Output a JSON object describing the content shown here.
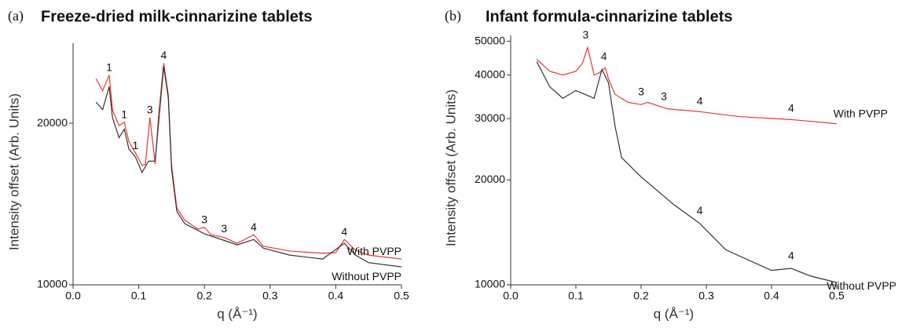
{
  "chart_data": [
    {
      "type": "line",
      "panel_label": "(a)",
      "title": "Freeze-dried milk-cinnarizine tablets",
      "x_label": "q (Å⁻¹)",
      "y_label": "Intensity offset (Arb. Units)",
      "xlim": [
        0,
        0.5
      ],
      "xticks": [
        {
          "value": 0,
          "label": "0.0"
        },
        0.1,
        0.2,
        0.3,
        0.4,
        0.5
      ],
      "ylim": [
        10000,
        28200
      ],
      "yticks": [
        10000,
        20000
      ],
      "y_log": true,
      "series": [
        {
          "name": "With PVPP",
          "color": "#e8382f",
          "x": [
            0.035,
            0.045,
            0.055,
            0.06,
            0.07,
            0.078,
            0.085,
            0.095,
            0.105,
            0.11,
            0.117,
            0.125,
            0.13,
            0.138,
            0.145,
            0.15,
            0.158,
            0.17,
            0.19,
            0.2,
            0.21,
            0.23,
            0.25,
            0.275,
            0.29,
            0.33,
            0.38,
            0.4,
            0.413,
            0.43,
            0.45,
            0.5
          ],
          "values": [
            24200,
            23000,
            24600,
            21200,
            19800,
            20100,
            18500,
            17600,
            16700,
            16750,
            20500,
            16800,
            20500,
            25900,
            22600,
            16700,
            13900,
            13200,
            12700,
            12800,
            12400,
            12250,
            11950,
            12400,
            11800,
            11560,
            11450,
            11480,
            12150,
            11600,
            11360,
            11170
          ]
        },
        {
          "name": "Without PVPP",
          "color": "#333333",
          "x": [
            0.035,
            0.045,
            0.055,
            0.06,
            0.07,
            0.078,
            0.085,
            0.095,
            0.105,
            0.115,
            0.125,
            0.132,
            0.138,
            0.145,
            0.15,
            0.158,
            0.17,
            0.2,
            0.23,
            0.25,
            0.275,
            0.29,
            0.33,
            0.38,
            0.413,
            0.43,
            0.45,
            0.5
          ],
          "values": [
            21900,
            21200,
            23400,
            20500,
            18800,
            19500,
            17900,
            17300,
            16200,
            17000,
            17000,
            21200,
            25500,
            22300,
            16400,
            13700,
            13000,
            12450,
            12100,
            11870,
            12150,
            11700,
            11360,
            11170,
            11950,
            11360,
            11000,
            10800
          ]
        }
      ],
      "annotations": [
        {
          "text": "1",
          "x": 0.055,
          "y": 24600
        },
        {
          "text": "1",
          "x": 0.078,
          "y": 20100
        },
        {
          "text": "1",
          "x": 0.095,
          "y": 17600
        },
        {
          "text": "3",
          "x": 0.117,
          "y": 20500
        },
        {
          "text": "4",
          "x": 0.138,
          "y": 25900
        },
        {
          "text": "3",
          "x": 0.2,
          "y": 12800
        },
        {
          "text": "3",
          "x": 0.23,
          "y": 12300
        },
        {
          "text": "4",
          "x": 0.275,
          "y": 12400
        },
        {
          "text": "4",
          "x": 0.413,
          "y": 12150
        }
      ]
    },
    {
      "type": "line",
      "panel_label": "(b)",
      "title": "Infant formula-cinnarizine tablets",
      "x_label": "q (Å⁻¹)",
      "y_label": "Intensity offset (Arb. Units)",
      "xlim": [
        0,
        0.5
      ],
      "xticks": [
        {
          "value": 0,
          "label": "0.0"
        },
        0.1,
        0.2,
        0.3,
        0.4,
        0.5
      ],
      "ylim": [
        10000,
        52000
      ],
      "yticks": [
        10000,
        20000,
        30000,
        40000,
        50000
      ],
      "y_log": true,
      "series": [
        {
          "name": "With PVPP",
          "color": "#e8382f",
          "x": [
            0.04,
            0.06,
            0.08,
            0.1,
            0.11,
            0.118,
            0.128,
            0.135,
            0.145,
            0.15,
            0.16,
            0.18,
            0.2,
            0.21,
            0.24,
            0.29,
            0.35,
            0.43,
            0.5
          ],
          "values": [
            44400,
            41000,
            40000,
            41000,
            43200,
            48000,
            40000,
            40500,
            42000,
            39000,
            35200,
            33400,
            32900,
            33400,
            32000,
            31400,
            30400,
            29800,
            29000
          ]
        },
        {
          "name": "Without PVPP",
          "color": "#333333",
          "x": [
            0.04,
            0.06,
            0.08,
            0.1,
            0.12,
            0.128,
            0.14,
            0.15,
            0.16,
            0.17,
            0.2,
            0.25,
            0.29,
            0.33,
            0.4,
            0.43,
            0.46,
            0.5
          ],
          "values": [
            43700,
            37000,
            34300,
            36100,
            34800,
            34300,
            41500,
            38000,
            28600,
            23200,
            20400,
            17000,
            15000,
            12600,
            11000,
            11150,
            10600,
            10150
          ]
        }
      ],
      "annotations": [
        {
          "text": "3",
          "x": 0.115,
          "y": 49500
        },
        {
          "text": "4",
          "x": 0.143,
          "y": 43000
        },
        {
          "text": "3",
          "x": 0.2,
          "y": 34000
        },
        {
          "text": "3",
          "x": 0.235,
          "y": 33000
        },
        {
          "text": "4",
          "x": 0.29,
          "y": 32000
        },
        {
          "text": "4",
          "x": 0.43,
          "y": 30500
        },
        {
          "text": "4",
          "x": 0.29,
          "y": 15500
        },
        {
          "text": "4",
          "x": 0.43,
          "y": 11500
        }
      ]
    }
  ]
}
